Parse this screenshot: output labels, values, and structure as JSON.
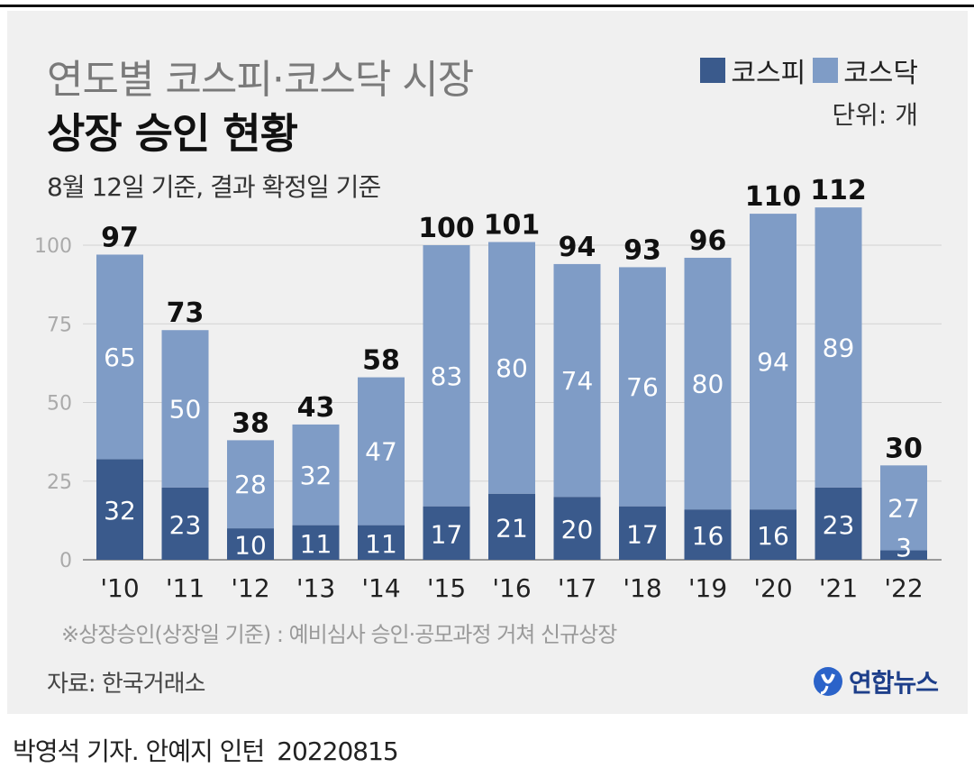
{
  "title": {
    "line1": "연도별 코스피·코스닥 시장",
    "line2": "상장 승인 현황",
    "subtitle": "8월 12일 기준, 결과 확정일 기준"
  },
  "legend": {
    "kospi": "코스피",
    "kosdaq": "코스닥",
    "unit": "단위: 개"
  },
  "colors": {
    "kospi": "#3a5a8c",
    "kosdaq": "#7f9cc6",
    "grid": "#d2d2d2",
    "panel": "#f0f0f0"
  },
  "chart_data": {
    "type": "bar",
    "stacked": true,
    "categories": [
      "'10",
      "'11",
      "'12",
      "'13",
      "'14",
      "'15",
      "'16",
      "'17",
      "'18",
      "'19",
      "'20",
      "'21",
      "'22"
    ],
    "series": [
      {
        "name": "코스피",
        "values": [
          32,
          23,
          10,
          11,
          11,
          17,
          21,
          20,
          17,
          16,
          16,
          23,
          3
        ]
      },
      {
        "name": "코스닥",
        "values": [
          65,
          50,
          28,
          32,
          47,
          83,
          80,
          74,
          76,
          80,
          94,
          89,
          27
        ]
      }
    ],
    "totals": [
      97,
      73,
      38,
      43,
      58,
      100,
      101,
      94,
      93,
      96,
      110,
      112,
      30
    ],
    "yticks": [
      0,
      25,
      50,
      75,
      100
    ],
    "ylim": [
      0,
      112
    ],
    "title": "연도별 코스피·코스닥 시장 상장 승인 현황",
    "xlabel": "",
    "ylabel": "",
    "grid": true,
    "legend_position": "top-right"
  },
  "footnote": "※상장승인(상장일 기준) : 예비심사 승인·공모과정 거쳐 신규상장",
  "source": "자료: 한국거래소",
  "logo": {
    "text": "연합뉴스",
    "icon": "yonhap-logo-icon"
  },
  "byline": {
    "author": "박영석 기자. 안예지 인턴",
    "date": "20220815"
  }
}
